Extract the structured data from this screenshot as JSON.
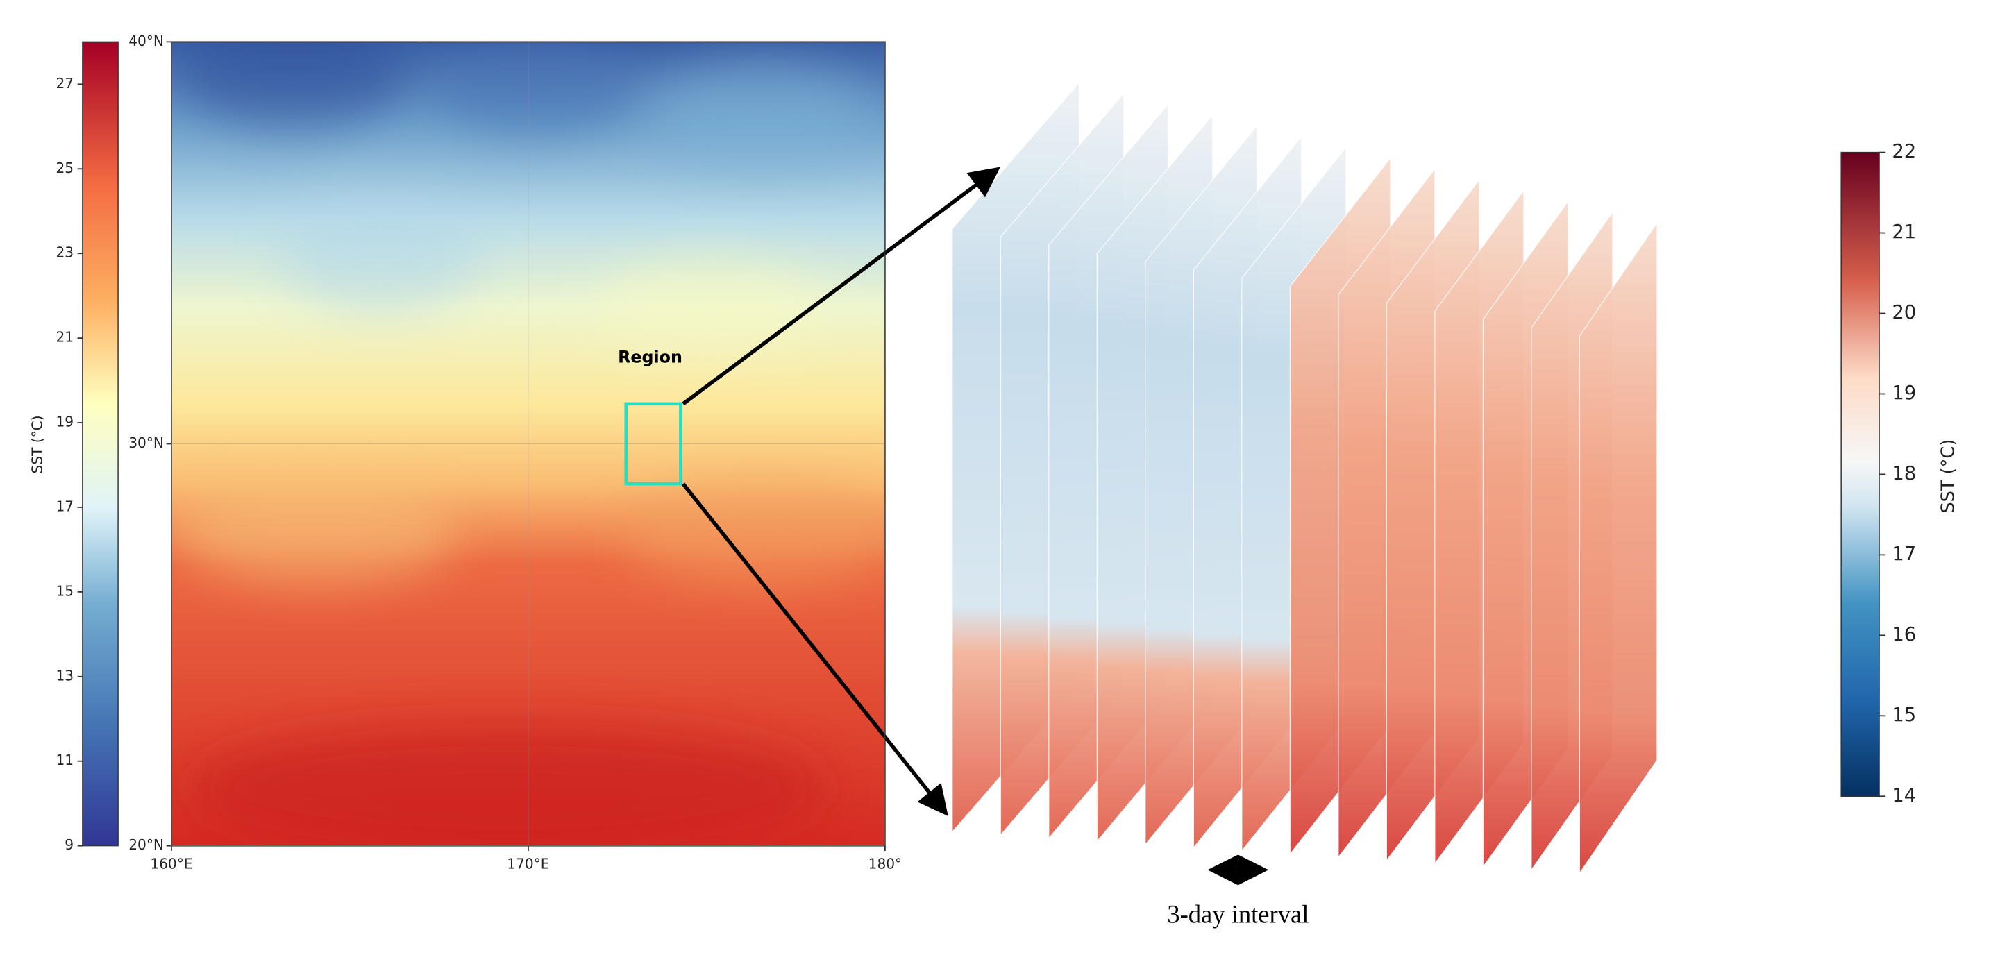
{
  "map": {
    "colorbar": {
      "label": "SST (°C)",
      "lim": [
        9,
        28
      ],
      "ticks": [
        9,
        11,
        13,
        15,
        17,
        19,
        21,
        23,
        25,
        27
      ]
    },
    "latlim": [
      20,
      40
    ],
    "lat_ticks": [
      {
        "value": 40,
        "label": "40°N"
      },
      {
        "value": 30,
        "label": "30°N"
      },
      {
        "value": 20,
        "label": "20°N"
      }
    ],
    "lonlim": [
      160,
      180
    ],
    "lon_ticks": [
      {
        "value": 160,
        "label": "160°E"
      },
      {
        "value": 170,
        "label": "170°E"
      },
      {
        "value": 180,
        "label": "180°"
      }
    ],
    "region_label": "Region"
  },
  "stack": {
    "colorbar": {
      "label": "SST (°C)",
      "lim": [
        14,
        22
      ],
      "ticks": [
        14,
        15,
        16,
        17,
        18,
        19,
        20,
        21,
        22
      ]
    },
    "interval_label": "3-day interval"
  }
}
